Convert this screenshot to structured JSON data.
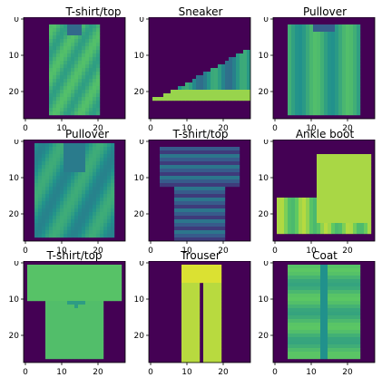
{
  "chart_data": [
    {
      "type": "heatmap",
      "title": "T-shirt/top",
      "xticks": [
        0,
        10,
        20
      ],
      "yticks": [
        0,
        10,
        20
      ],
      "xlim": [
        0,
        27
      ],
      "ylim": [
        27,
        0
      ],
      "colormap": "viridis",
      "image_shape": [
        28,
        28
      ],
      "shape": "tshirt_sleeveless",
      "fill_level": 0.68
    },
    {
      "type": "heatmap",
      "title": "Sneaker",
      "xticks": [
        0,
        10,
        20
      ],
      "yticks": [
        0,
        10,
        20
      ],
      "xlim": [
        0,
        27
      ],
      "ylim": [
        27,
        0
      ],
      "colormap": "viridis",
      "image_shape": [
        28,
        28
      ],
      "shape": "sneaker",
      "fill_level": 0.62
    },
    {
      "type": "heatmap",
      "title": "Pullover",
      "xticks": [
        0,
        10,
        20
      ],
      "yticks": [
        0,
        10,
        20
      ],
      "xlim": [
        0,
        27
      ],
      "ylim": [
        27,
        0
      ],
      "colormap": "viridis",
      "image_shape": [
        28,
        28
      ],
      "shape": "pullover",
      "fill_level": 0.7
    },
    {
      "type": "heatmap",
      "title": "Pullover",
      "xticks": [
        0,
        10,
        20
      ],
      "yticks": [
        0,
        10,
        20
      ],
      "xlim": [
        0,
        27
      ],
      "ylim": [
        27,
        0
      ],
      "colormap": "viridis",
      "image_shape": [
        28,
        28
      ],
      "shape": "hoodie",
      "fill_level": 0.64
    },
    {
      "type": "heatmap",
      "title": "T-shirt/top",
      "xticks": [
        0,
        10,
        20
      ],
      "yticks": [
        0,
        10,
        20
      ],
      "xlim": [
        0,
        27
      ],
      "ylim": [
        27,
        0
      ],
      "colormap": "viridis",
      "image_shape": [
        28,
        28
      ],
      "shape": "tshirt_striped",
      "fill_level": 0.5
    },
    {
      "type": "heatmap",
      "title": "Ankle boot",
      "xticks": [
        0,
        10,
        20
      ],
      "yticks": [
        0,
        10,
        20
      ],
      "xlim": [
        0,
        27
      ],
      "ylim": [
        27,
        0
      ],
      "colormap": "viridis",
      "image_shape": [
        28,
        28
      ],
      "shape": "ankle_boot",
      "fill_level": 0.76
    },
    {
      "type": "heatmap",
      "title": "T-shirt/top",
      "xticks": [
        0,
        10,
        20
      ],
      "yticks": [
        0,
        10,
        20
      ],
      "xlim": [
        0,
        27
      ],
      "ylim": [
        27,
        0
      ],
      "colormap": "viridis",
      "image_shape": [
        28,
        28
      ],
      "shape": "tshirt",
      "fill_level": 0.7
    },
    {
      "type": "heatmap",
      "title": "Trouser",
      "xticks": [
        0,
        10,
        20
      ],
      "yticks": [
        0,
        10,
        20
      ],
      "xlim": [
        0,
        27
      ],
      "ylim": [
        27,
        0
      ],
      "colormap": "viridis",
      "image_shape": [
        28,
        28
      ],
      "shape": "trouser",
      "fill_level": 0.78
    },
    {
      "type": "heatmap",
      "title": "Coat",
      "xticks": [
        0,
        10,
        20
      ],
      "yticks": [
        0,
        10,
        20
      ],
      "xlim": [
        0,
        27
      ],
      "ylim": [
        27,
        0
      ],
      "colormap": "viridis",
      "image_shape": [
        28,
        28
      ],
      "shape": "coat",
      "fill_level": 0.7
    }
  ],
  "colors": {
    "background": "#440154",
    "dark": "#3b528b",
    "mid": "#21918c",
    "light": "#5ec962",
    "bright": "#fde725"
  }
}
